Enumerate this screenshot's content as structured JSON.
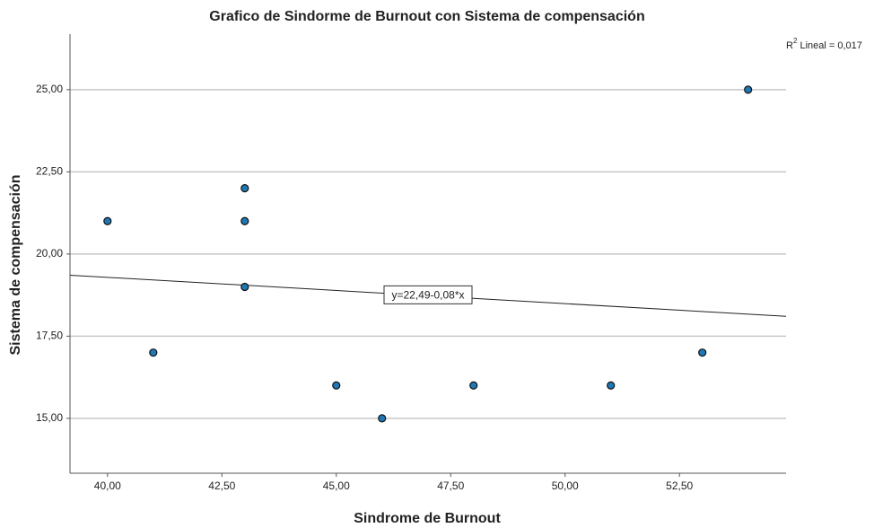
{
  "chart_data": {
    "type": "scatter",
    "title": "Grafico de Sindorme de Burnout con Sistema de compensación",
    "x_label": "Sindrome de Burnout",
    "y_label": "Sistema de compensación",
    "x": [
      40,
      41,
      43,
      43,
      43,
      45,
      46,
      48,
      51,
      53,
      54
    ],
    "values": [
      21,
      17,
      22,
      21,
      19,
      16,
      15,
      16,
      16,
      17,
      25
    ],
    "color": "#1f77b4",
    "xlim": [
      39.18,
      54.83
    ],
    "ylim": [
      13.33,
      26.69
    ],
    "xticks": [
      {
        "value": 40,
        "label": "40,00"
      },
      {
        "value": 42.5,
        "label": "42,50"
      },
      {
        "value": 45,
        "label": "45,00"
      },
      {
        "value": 47.5,
        "label": "47,50"
      },
      {
        "value": 50,
        "label": "50,00"
      },
      {
        "value": 52.5,
        "label": "52,50"
      }
    ],
    "yticks": [
      {
        "value": 15,
        "label": "15,00"
      },
      {
        "value": 17.5,
        "label": "17,50"
      },
      {
        "value": 20,
        "label": "20,00"
      },
      {
        "value": 22.5,
        "label": "22,50"
      },
      {
        "value": 25,
        "label": "25,00"
      }
    ],
    "grid": true,
    "fit": {
      "intercept": 22.49,
      "slope": -0.08,
      "label": "y=22,49-0,08*x"
    },
    "r_squared": {
      "base": "R",
      "sup": "2",
      "text": " Lineal = 0,017"
    }
  }
}
